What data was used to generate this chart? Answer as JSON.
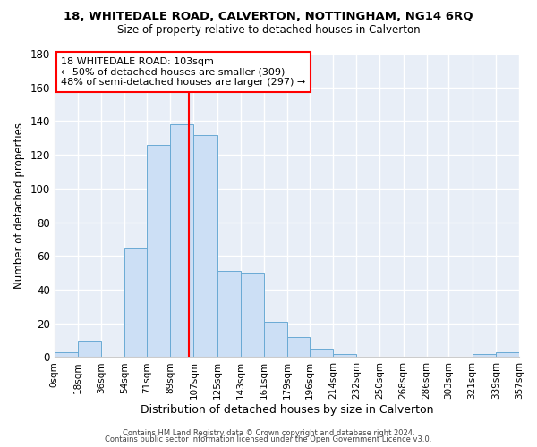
{
  "title": "18, WHITEDALE ROAD, CALVERTON, NOTTINGHAM, NG14 6RQ",
  "subtitle": "Size of property relative to detached houses in Calverton",
  "xlabel": "Distribution of detached houses by size in Calverton",
  "ylabel": "Number of detached properties",
  "bar_color": "#ccdff5",
  "bar_edge_color": "#6aaad4",
  "bin_edges": [
    0,
    18,
    36,
    54,
    71,
    89,
    107,
    125,
    143,
    161,
    179,
    196,
    214,
    232,
    250,
    268,
    286,
    303,
    321,
    339,
    357
  ],
  "bin_labels": [
    "0sqm",
    "18sqm",
    "36sqm",
    "54sqm",
    "71sqm",
    "89sqm",
    "107sqm",
    "125sqm",
    "143sqm",
    "161sqm",
    "179sqm",
    "196sqm",
    "214sqm",
    "232sqm",
    "250sqm",
    "268sqm",
    "286sqm",
    "303sqm",
    "321sqm",
    "339sqm",
    "357sqm"
  ],
  "bar_heights": [
    3,
    10,
    0,
    65,
    126,
    138,
    132,
    51,
    50,
    21,
    12,
    5,
    2,
    0,
    0,
    0,
    0,
    0,
    2,
    3
  ],
  "property_line_x": 103,
  "ylim": [
    0,
    180
  ],
  "yticks": [
    0,
    20,
    40,
    60,
    80,
    100,
    120,
    140,
    160,
    180
  ],
  "annotation_title": "18 WHITEDALE ROAD: 103sqm",
  "annotation_line1": "← 50% of detached houses are smaller (309)",
  "annotation_line2": "48% of semi-detached houses are larger (297) →",
  "footer1": "Contains HM Land Registry data © Crown copyright and database right 2024.",
  "footer2": "Contains public sector information licensed under the Open Government Licence v3.0.",
  "background_color": "#ffffff",
  "plot_bg_color": "#e8eef7",
  "grid_color": "#ffffff"
}
